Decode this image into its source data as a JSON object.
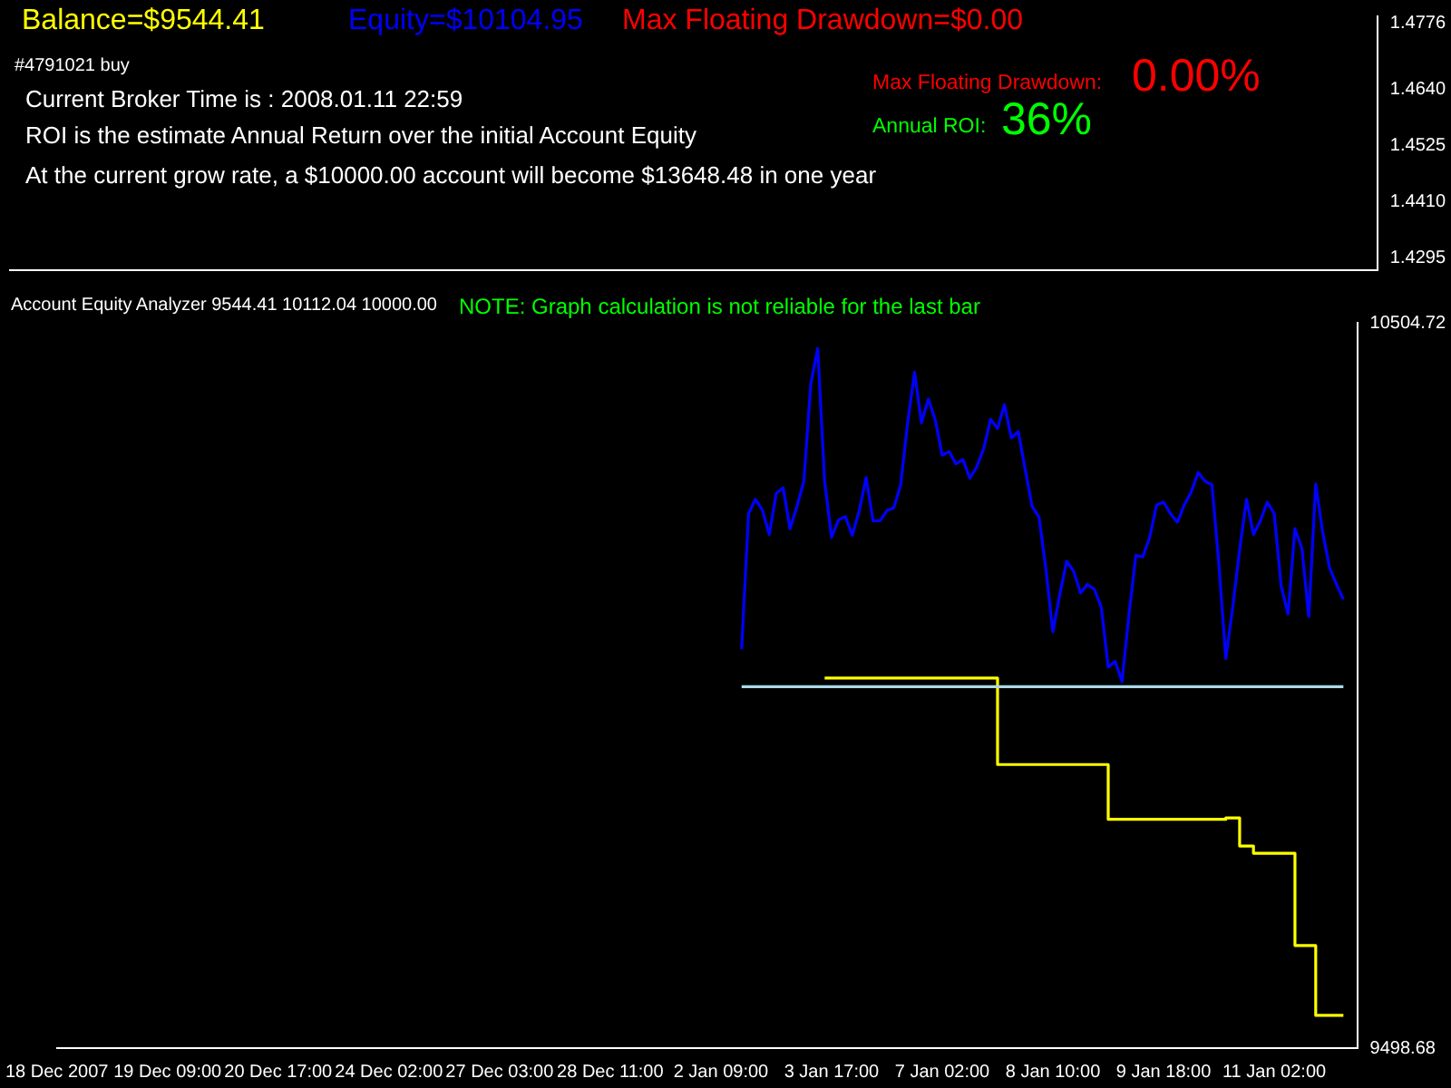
{
  "chart_data": [
    {
      "type": "line",
      "annotations": [
        "Balance=$9544.41",
        "Equity=$10104.95",
        "Max Floating Drawdown=$0.00",
        "#4791021 buy",
        "Current Broker Time is : 2008.01.11 22:59",
        "ROI is the estimate Annual Return over the initial Account Equity",
        "At the current grow rate, a $10000.00 account will become $13648.48 in one year",
        "Max Floating Drawdown:",
        "0.00%",
        "Annual ROI:",
        "36%"
      ],
      "categories": [
        null,
        null
      ],
      "ylim": [
        1.427,
        1.479
      ],
      "yticks": [
        1.4295,
        {
          "value": 1.441,
          "label": "1.4410"
        },
        1.4525,
        {
          "value": 1.464,
          "label": "1.4640"
        },
        1.4776
      ],
      "tick_labels": "y",
      "series": [
        {
          "color": "#ffffff",
          "values": [
            null,
            null
          ]
        }
      ]
    },
    {
      "type": "line",
      "title": "Account Equity Analyzer 9544.41 10112.04 10000.00",
      "annotations": [
        "NOTE: Graph calculation is not reliable for the last bar"
      ],
      "categories": [
        "18 Dec 2007",
        null,
        null,
        null,
        null,
        null,
        null,
        null,
        null,
        null,
        null,
        null,
        null,
        null,
        null,
        null,
        "19 Dec 09:00",
        null,
        null,
        null,
        null,
        null,
        null,
        null,
        null,
        null,
        null,
        null,
        null,
        null,
        null,
        null,
        "20 Dec 17:00",
        null,
        null,
        null,
        null,
        null,
        null,
        null,
        null,
        null,
        null,
        null,
        null,
        null,
        null,
        null,
        "24 Dec 02:00",
        null,
        null,
        null,
        null,
        null,
        null,
        null,
        null,
        null,
        null,
        null,
        null,
        null,
        null,
        null,
        "27 Dec 03:00",
        null,
        null,
        null,
        null,
        null,
        null,
        null,
        null,
        null,
        null,
        null,
        null,
        null,
        null,
        null,
        "28 Dec 11:00",
        null,
        null,
        null,
        null,
        null,
        null,
        null,
        null,
        null,
        null,
        null,
        null,
        null,
        null,
        null,
        "2 Jan 09:00",
        null,
        null,
        null,
        null,
        null,
        null,
        null,
        null,
        null,
        null,
        null,
        null,
        null,
        null,
        null,
        "3 Jan 17:00",
        null,
        null,
        null,
        null,
        null,
        null,
        null,
        null,
        null,
        null,
        null,
        null,
        null,
        null,
        null,
        "7 Jan 02:00",
        null,
        null,
        null,
        null,
        null,
        null,
        null,
        null,
        null,
        null,
        null,
        null,
        null,
        null,
        null,
        "8 Jan 10:00",
        null,
        null,
        null,
        null,
        null,
        null,
        null,
        null,
        null,
        null,
        null,
        null,
        null,
        null,
        null,
        "9 Jan 18:00",
        null,
        null,
        null,
        null,
        null,
        null,
        null,
        null,
        null,
        null,
        null,
        null,
        null,
        null,
        null,
        "11 Jan 02:00",
        null,
        null,
        null,
        null,
        null,
        null,
        null,
        null,
        null,
        null,
        null,
        null
      ],
      "ylim": [
        9498.68,
        10504.72
      ],
      "yticks": [
        9498.68,
        10504.72
      ],
      "marker": "none",
      "grid": false,
      "legend": false,
      "series": [
        {
          "color": "#add8e6",
          "values": [
            null,
            null,
            null,
            null,
            null,
            null,
            null,
            null,
            null,
            null,
            null,
            null,
            null,
            null,
            null,
            null,
            null,
            null,
            null,
            null,
            null,
            null,
            null,
            null,
            null,
            null,
            null,
            null,
            null,
            null,
            null,
            null,
            null,
            null,
            null,
            null,
            null,
            null,
            null,
            null,
            null,
            null,
            null,
            null,
            null,
            null,
            null,
            null,
            null,
            null,
            null,
            null,
            null,
            null,
            null,
            null,
            null,
            null,
            null,
            null,
            null,
            null,
            null,
            null,
            null,
            null,
            null,
            null,
            null,
            null,
            null,
            null,
            null,
            null,
            null,
            null,
            null,
            null,
            null,
            null,
            null,
            null,
            null,
            null,
            null,
            null,
            null,
            null,
            null,
            null,
            null,
            null,
            null,
            null,
            null,
            null,
            null,
            null,
            null,
            10000,
            10000,
            10000,
            10000,
            10000,
            10000,
            10000,
            10000,
            10000,
            10000,
            10000,
            10000,
            10000,
            10000,
            10000,
            10000,
            10000,
            10000,
            10000,
            10000,
            10000,
            10000,
            10000,
            10000,
            10000,
            10000,
            10000,
            10000,
            10000,
            10000,
            10000,
            10000,
            10000,
            10000,
            10000,
            10000,
            10000,
            10000,
            10000,
            10000,
            10000,
            10000,
            10000,
            10000,
            10000,
            10000,
            10000,
            10000,
            10000,
            10000,
            10000,
            10000,
            10000,
            10000,
            10000,
            10000,
            10000,
            10000,
            10000,
            10000,
            10000,
            10000,
            10000,
            10000,
            10000,
            10000,
            10000,
            10000,
            10000,
            10000,
            10000,
            10000,
            10000,
            10000,
            10000,
            10000,
            10000,
            10000,
            10000,
            10000,
            10000,
            10000,
            10000,
            10000,
            10000,
            10000,
            10000,
            10000,
            null,
            null
          ]
        },
        {
          "color": "#ffff00",
          "type": "step",
          "values": [
            null,
            null,
            null,
            null,
            null,
            null,
            null,
            null,
            null,
            null,
            null,
            null,
            null,
            null,
            null,
            null,
            null,
            null,
            null,
            null,
            null,
            null,
            null,
            null,
            null,
            null,
            null,
            null,
            null,
            null,
            null,
            null,
            null,
            null,
            null,
            null,
            null,
            null,
            null,
            null,
            null,
            null,
            null,
            null,
            null,
            null,
            null,
            null,
            null,
            null,
            null,
            null,
            null,
            null,
            null,
            null,
            null,
            null,
            null,
            null,
            null,
            null,
            null,
            null,
            null,
            null,
            null,
            null,
            null,
            null,
            null,
            null,
            null,
            null,
            null,
            null,
            null,
            null,
            null,
            null,
            null,
            null,
            null,
            null,
            null,
            null,
            null,
            null,
            null,
            null,
            null,
            null,
            null,
            null,
            null,
            null,
            null,
            null,
            null,
            null,
            null,
            null,
            null,
            null,
            null,
            null,
            null,
            null,
            null,
            null,
            null,
            10012,
            10012,
            10012,
            10012,
            10012,
            10012,
            10012,
            10012,
            10012,
            10012,
            10012,
            10012,
            10012,
            10012,
            10012,
            10012,
            10012,
            10012,
            10012,
            10012,
            10012,
            10012,
            10012,
            10012,
            10012,
            9892,
            9892,
            9892,
            9892,
            9892,
            9892,
            9892,
            9892,
            9892,
            9892,
            9892,
            9892,
            9892,
            9892,
            9892,
            9892,
            9816,
            9816,
            9816,
            9816,
            9816,
            9816,
            9816,
            9816,
            9816,
            9816,
            9816,
            9816,
            9816,
            9816,
            9816,
            9816,
            9816,
            9818,
            9818,
            9779,
            9779,
            9769,
            9769,
            9769,
            9769,
            9769,
            9769,
            9641,
            9641,
            9641,
            9544,
            9544,
            9544,
            9544,
            9544,
            null,
            null
          ]
        },
        {
          "color": "#0000ff",
          "values": [
            null,
            null,
            null,
            null,
            null,
            null,
            null,
            null,
            null,
            null,
            null,
            null,
            null,
            null,
            null,
            null,
            null,
            null,
            null,
            null,
            null,
            null,
            null,
            null,
            null,
            null,
            null,
            null,
            null,
            null,
            null,
            null,
            null,
            null,
            null,
            null,
            null,
            null,
            null,
            null,
            null,
            null,
            null,
            null,
            null,
            null,
            null,
            null,
            null,
            null,
            null,
            null,
            null,
            null,
            null,
            null,
            null,
            null,
            null,
            null,
            null,
            null,
            null,
            null,
            null,
            null,
            null,
            null,
            null,
            null,
            null,
            null,
            null,
            null,
            null,
            null,
            null,
            null,
            null,
            null,
            null,
            null,
            null,
            null,
            null,
            null,
            null,
            null,
            null,
            null,
            null,
            null,
            null,
            null,
            null,
            null,
            null,
            null,
            null,
            10052,
            10240,
            10260,
            10245,
            10211,
            10268,
            10276,
            10219,
            10250,
            10285,
            10420,
            10469,
            10285,
            10207,
            10231,
            10236,
            10210,
            10244,
            10290,
            10230,
            10230,
            10244,
            10248,
            10280,
            10366,
            10436,
            10366,
            10399,
            10370,
            10321,
            10326,
            10309,
            10315,
            10289,
            10305,
            10330,
            10371,
            10358,
            10391,
            10345,
            10354,
            10301,
            10250,
            10235,
            10162,
            10076,
            10128,
            10174,
            10160,
            10130,
            10142,
            10135,
            10110,
            10027,
            10035,
            10007,
            10100,
            10182,
            10180,
            10207,
            10252,
            10256,
            10240,
            10228,
            10252,
            10270,
            10297,
            10285,
            10280,
            10170,
            10039,
            10110,
            10190,
            10260,
            10211,
            10230,
            10256,
            10240,
            10140,
            10101,
            10219,
            10192,
            10097,
            10281,
            10215,
            10165,
            10142,
            10121,
            null,
            null
          ]
        }
      ]
    }
  ]
}
